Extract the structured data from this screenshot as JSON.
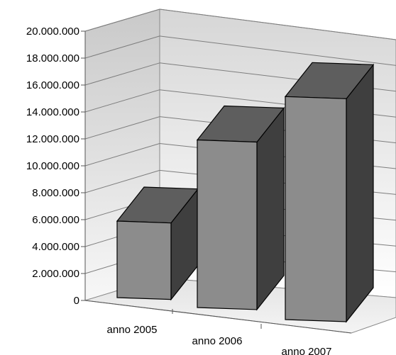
{
  "chart_data": {
    "type": "bar",
    "title": "",
    "xlabel": "",
    "ylabel": "",
    "categories": [
      "anno 2005",
      "anno 2006",
      "anno 2007"
    ],
    "values": [
      5800000,
      12700000,
      16900000
    ],
    "ylim": [
      0,
      20000000
    ],
    "yticks": [
      0,
      2000000,
      4000000,
      6000000,
      8000000,
      10000000,
      12000000,
      14000000,
      16000000,
      18000000,
      20000000
    ],
    "ytick_labels": [
      "0",
      "2.000.000",
      "4.000.000",
      "6.000.000",
      "8.000.000",
      "10.000.000",
      "12.000.000",
      "14.000.000",
      "16.000.000",
      "18.000.000",
      "20.000.000"
    ],
    "grid": true,
    "legend": "none",
    "style": "3d-column",
    "colors": {
      "bar_front": "#8c8c8c",
      "bar_top": "#5e5e5e",
      "bar_side": "#3f3f3f",
      "wall": "#e6e6e6",
      "floor": "#d9d9d9",
      "grid": "#808080"
    }
  }
}
